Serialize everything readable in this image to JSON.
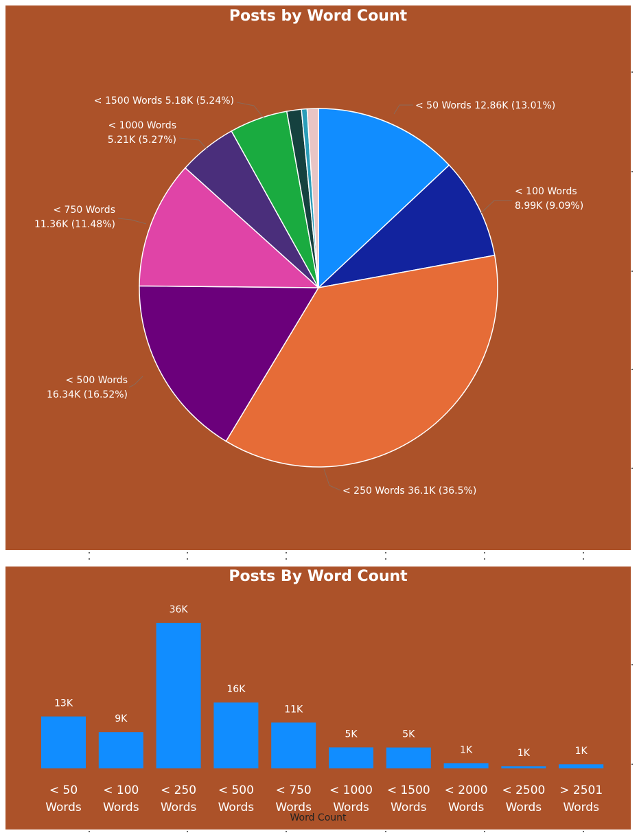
{
  "chart_data": [
    {
      "type": "pie",
      "title": "Posts by Word Count",
      "background": "#AC5229",
      "slices": [
        {
          "label": "< 50 Words",
          "value": 12.86,
          "display": "12.86K",
          "percent": "13.01%",
          "color": "#118DFF"
        },
        {
          "label": "< 100 Words",
          "value": 8.99,
          "display": "8.99K",
          "percent": "9.09%",
          "color": "#12239E"
        },
        {
          "label": "< 250 Words",
          "value": 36.1,
          "display": "36.1K",
          "percent": "36.5%",
          "color": "#E66C37"
        },
        {
          "label": "< 500 Words",
          "value": 16.34,
          "display": "16.34K",
          "percent": "16.52%",
          "color": "#6B007B"
        },
        {
          "label": "< 750 Words",
          "value": 11.36,
          "display": "11.36K",
          "percent": "11.48%",
          "color": "#E044A7"
        },
        {
          "label": "< 1000 Words",
          "value": 5.21,
          "display": "5.21K",
          "percent": "5.27%",
          "color": "#4A2E7B"
        },
        {
          "label": "< 1500 Words",
          "value": 5.18,
          "display": "5.18K",
          "percent": "5.24%",
          "color": "#1AAB40"
        },
        {
          "label": "< 2000 Words",
          "value": 1.3,
          "color": "#15413F"
        },
        {
          "label": "< 2500 Words",
          "value": 0.5,
          "color": "#2A9DB8"
        },
        {
          "label": "> 2501 Words",
          "value": 1.0,
          "color": "#E8C5C5"
        }
      ]
    },
    {
      "type": "bar",
      "title": "Posts By Word Count",
      "xlabel": "Word Count",
      "bar_color": "#118DFF",
      "categories": [
        "< 50 Words",
        "< 100 Words",
        "< 250 Words",
        "< 500 Words",
        "< 750 Words",
        "< 1000 Words",
        "< 1500 Words",
        "< 2000 Words",
        "< 2500 Words",
        "> 2501 Words"
      ],
      "tick_lines": [
        [
          "< 50",
          "Words"
        ],
        [
          "< 100",
          "Words"
        ],
        [
          "< 250",
          "Words"
        ],
        [
          "< 500",
          "Words"
        ],
        [
          "< 750",
          "Words"
        ],
        [
          "< 1000",
          "Words"
        ],
        [
          "< 1500",
          "Words"
        ],
        [
          "< 2000",
          "Words"
        ],
        [
          "< 2500",
          "Words"
        ],
        [
          "> 2501",
          "Words"
        ]
      ],
      "values": [
        12.86,
        8.99,
        36.1,
        16.34,
        11.36,
        5.21,
        5.18,
        1.3,
        0.5,
        1.0
      ],
      "data_labels": [
        "13K",
        "9K",
        "36K",
        "16K",
        "11K",
        "5K",
        "5K",
        "1K",
        "1K",
        "1K"
      ]
    }
  ]
}
